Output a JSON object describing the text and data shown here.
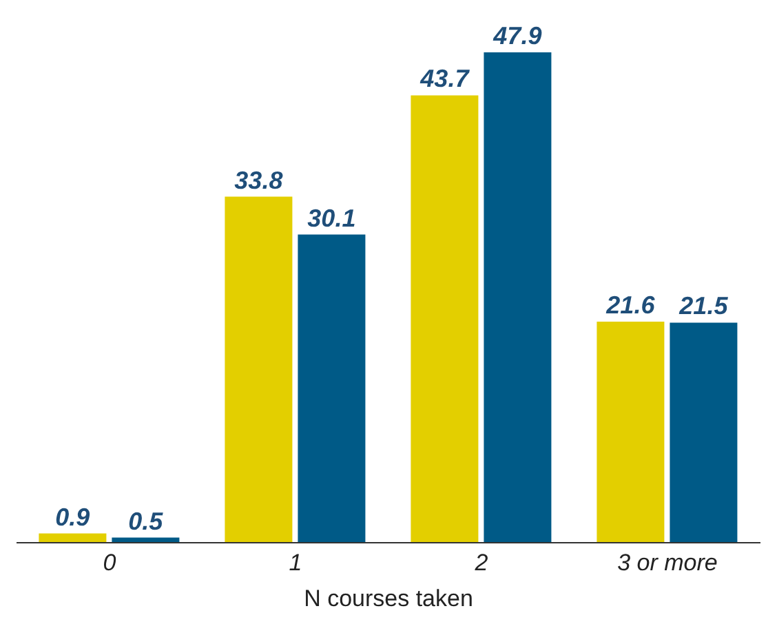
{
  "chart_data": {
    "type": "bar",
    "xlabel": "N courses taken",
    "categories": [
      "0",
      "1",
      "2",
      "3 or more"
    ],
    "series": [
      {
        "color": "#e3cf00",
        "values": [
          0.9,
          33.8,
          43.7,
          21.6
        ]
      },
      {
        "color": "#005a87",
        "values": [
          0.5,
          30.1,
          47.9,
          21.5
        ]
      }
    ],
    "data_labels": true,
    "grid": false,
    "legend": false
  }
}
